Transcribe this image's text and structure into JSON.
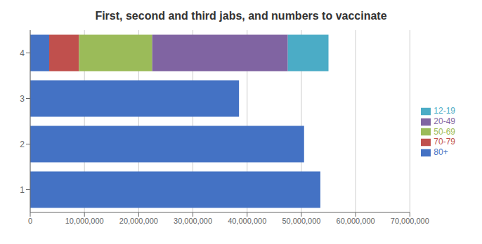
{
  "chart_data": {
    "type": "bar",
    "orientation": "horizontal",
    "stacked": true,
    "title": "First, second and third jabs, and numbers to vaccinate",
    "categories": [
      "1",
      "2",
      "3",
      "4"
    ],
    "series": [
      {
        "name": "80+",
        "color": "#4472C4",
        "values": [
          53500000,
          50500000,
          38500000,
          3500000
        ]
      },
      {
        "name": "70-79",
        "color": "#C0504D",
        "values": [
          0,
          0,
          0,
          5500000
        ]
      },
      {
        "name": "50-69",
        "color": "#9BBB59",
        "values": [
          0,
          0,
          0,
          13500000
        ]
      },
      {
        "name": "20-49",
        "color": "#8064A2",
        "values": [
          0,
          0,
          0,
          25000000
        ]
      },
      {
        "name": "12-19",
        "color": "#4BACC6",
        "values": [
          0,
          0,
          0,
          7500000
        ]
      }
    ],
    "xlim": [
      0,
      70000000
    ],
    "xticks": [
      0,
      {
        "value": 10000000,
        "label": "10,000,000"
      },
      {
        "value": 20000000,
        "label": "20,000,000"
      },
      {
        "value": 30000000,
        "label": "30,000,000"
      },
      {
        "value": 40000000,
        "label": "40,000,000"
      },
      {
        "value": 50000000,
        "label": "50,000,000"
      },
      {
        "value": 60000000,
        "label": "60,000,000"
      },
      {
        "value": 70000000,
        "label": "70,000,000"
      }
    ],
    "grid": "x",
    "legend": "right"
  }
}
